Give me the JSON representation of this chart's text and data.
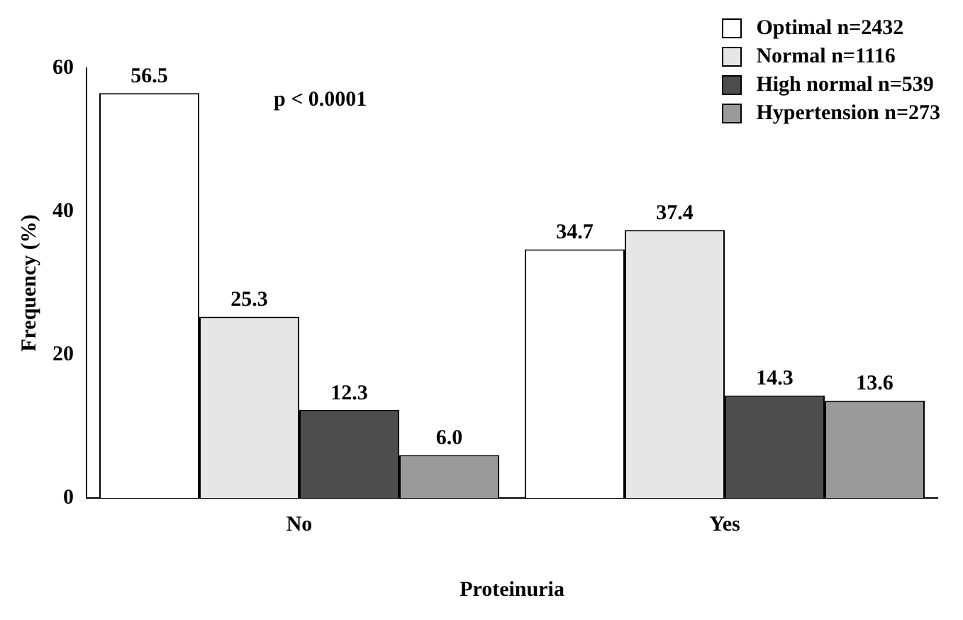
{
  "chart_data": {
    "type": "bar",
    "xlabel": "Proteinuria",
    "ylabel": "Frequency (%)",
    "categories": [
      "No",
      "Yes"
    ],
    "series": [
      {
        "name": "Optimal n=2432",
        "color": "#ffffff",
        "values": [
          56.5,
          34.7
        ],
        "value_labels": [
          "56.5",
          "34.7"
        ]
      },
      {
        "name": "Normal n=1116",
        "color": "#e6e6e6",
        "values": [
          25.3,
          37.4
        ],
        "value_labels": [
          "25.3",
          "37.4"
        ]
      },
      {
        "name": "High normal n=539",
        "color": "#4d4d4d",
        "values": [
          12.3,
          14.3
        ],
        "value_labels": [
          "12.3",
          "14.3"
        ]
      },
      {
        "name": "Hypertension n=273",
        "color": "#9a9a9a",
        "values": [
          6.0,
          13.6
        ],
        "value_labels": [
          "6.0",
          "13.6"
        ]
      }
    ],
    "ylim": [
      0,
      60
    ],
    "yticks": [
      0,
      20,
      40,
      60
    ],
    "grid": false,
    "legend": "top right",
    "annotations": [
      "p < 0.0001"
    ]
  }
}
